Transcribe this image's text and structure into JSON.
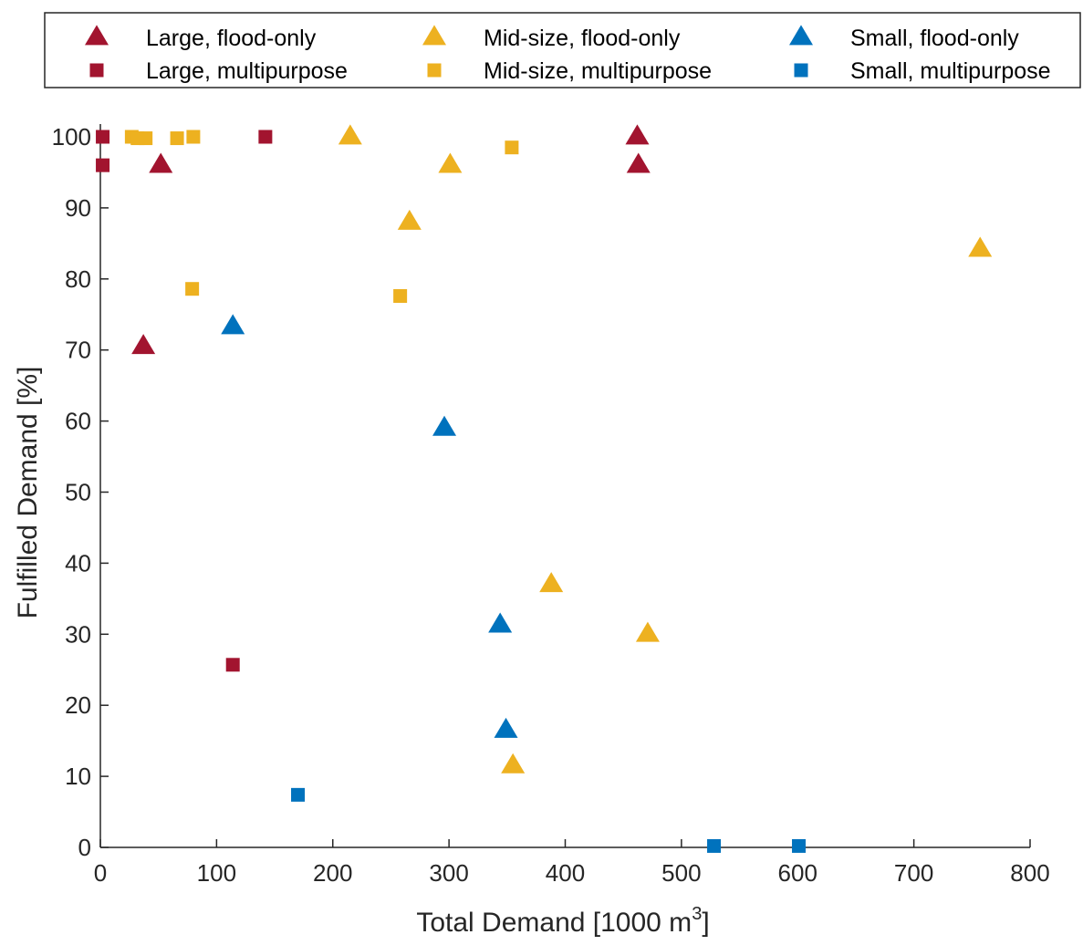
{
  "chart_data": {
    "type": "scatter",
    "xlabel": "Total Demand [1000 m",
    "xlabel_superscript": "3",
    "xlabel_suffix": "]",
    "ylabel": "Fulfilled Demand [%]",
    "xlim": [
      0,
      800
    ],
    "ylim": [
      0,
      100
    ],
    "xticks": [
      0,
      100,
      200,
      300,
      400,
      500,
      600,
      700,
      800
    ],
    "yticks": [
      0,
      10,
      20,
      30,
      40,
      50,
      60,
      70,
      80,
      90,
      100
    ],
    "x_tick_labels": [
      "0",
      "100",
      "200",
      "300",
      "400",
      "500",
      "600",
      "700",
      "800"
    ],
    "y_tick_labels": [
      "0",
      "10",
      "20",
      "30",
      "40",
      "50",
      "60",
      "70",
      "80",
      "90",
      "100"
    ],
    "grid": false,
    "legend_position": "top",
    "series": [
      {
        "name": "Large, flood-only",
        "marker": "triangle",
        "color": "#A2142F",
        "points": [
          [
            37,
            70.5
          ],
          [
            52,
            96
          ],
          [
            462,
            100
          ],
          [
            463,
            96
          ]
        ]
      },
      {
        "name": "Mid-size, flood-only",
        "marker": "triangle",
        "color": "#EDB120",
        "points": [
          [
            215,
            100
          ],
          [
            266,
            88
          ],
          [
            301,
            96
          ],
          [
            355,
            11.5
          ],
          [
            388,
            37
          ],
          [
            471,
            30
          ],
          [
            757,
            84.2
          ]
        ]
      },
      {
        "name": "Small, flood-only",
        "marker": "triangle",
        "color": "#0072BD",
        "points": [
          [
            114,
            73.3
          ],
          [
            296,
            59
          ],
          [
            344,
            31.3
          ],
          [
            349,
            16.5
          ]
        ]
      },
      {
        "name": "Large, multipurpose",
        "marker": "square",
        "color": "#A2142F",
        "points": [
          [
            2,
            100
          ],
          [
            2,
            96
          ],
          [
            142,
            100
          ],
          [
            114,
            25.7
          ]
        ]
      },
      {
        "name": "Mid-size, multipurpose",
        "marker": "square",
        "color": "#EDB120",
        "points": [
          [
            27,
            100
          ],
          [
            32,
            99.8
          ],
          [
            39,
            99.8
          ],
          [
            66,
            99.8
          ],
          [
            80,
            100
          ],
          [
            79,
            78.6
          ],
          [
            258,
            77.6
          ],
          [
            354,
            98.5
          ]
        ]
      },
      {
        "name": "Small, multipurpose",
        "marker": "square",
        "color": "#0072BD",
        "points": [
          [
            170,
            7.4
          ],
          [
            528,
            0.2
          ],
          [
            601,
            0.2
          ]
        ]
      }
    ],
    "legend_order": [
      0,
      1,
      2,
      3,
      4,
      5
    ]
  }
}
